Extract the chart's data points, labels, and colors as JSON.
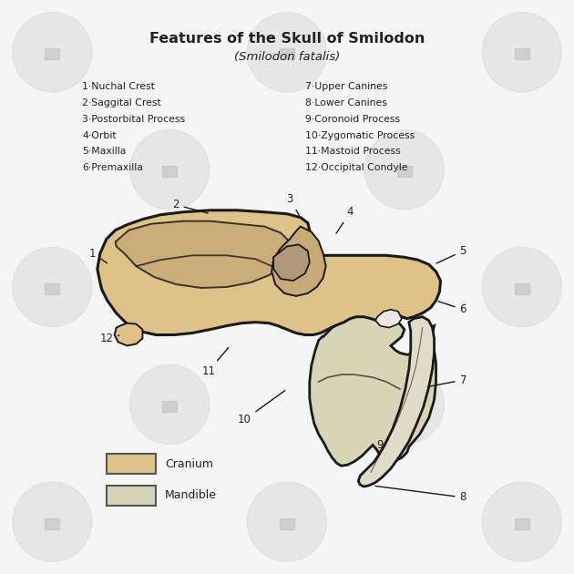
{
  "title": "Features of the Skull of Smilodon",
  "subtitle": "(Smilodon fatalis)",
  "background_color": "#f5f5f5",
  "cranium_color": "#dfc28a",
  "cranium_shade": "#c8aa78",
  "cranium_light": "#e8d4a8",
  "mandible_color": "#d8d4b8",
  "mandible_light": "#e8e4cc",
  "outline_color": "#1a1a1a",
  "legend_items": [
    {
      "label": "Cranium",
      "color": "#dfc28a"
    },
    {
      "label": "Mandible",
      "color": "#d8d4b8"
    }
  ],
  "left_labels": [
    "1·Nuchal Crest",
    "2·Saggital Crest",
    "3·Postorbital Process",
    "4·Orbit",
    "5·Maxilla",
    "6·Premaxilla"
  ],
  "right_labels": [
    "7·Upper Canines",
    "8·Lower Canines",
    "9·Coronoid Process",
    "10·Zygomatic Process",
    "11·Mastoid Process",
    "12·Occipital Condyle"
  ]
}
